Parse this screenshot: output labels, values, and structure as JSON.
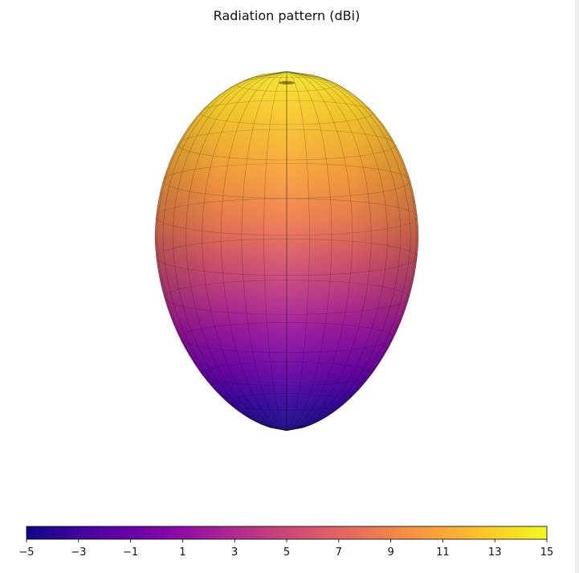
{
  "chart_data": {
    "type": "surface",
    "title": "Radiation pattern (dBi)",
    "colormap": "plasma",
    "colorbar": {
      "orientation": "horizontal",
      "placement": "bottom",
      "range": [
        -5,
        15
      ],
      "ticks": [
        -5,
        -3,
        -1,
        1,
        3,
        5,
        7,
        9,
        11,
        13,
        15
      ],
      "tick_labels": [
        "−5",
        "−3",
        "−1",
        "1",
        "3",
        "5",
        "7",
        "9",
        "11",
        "13",
        "15"
      ]
    },
    "pattern_gain_dBi": {
      "peak": 15,
      "minimum": -5
    },
    "grid": false,
    "axes_visible": false
  },
  "colors": {
    "background": "#ffffff",
    "mesh_line": "#000000",
    "text": "#111111"
  }
}
